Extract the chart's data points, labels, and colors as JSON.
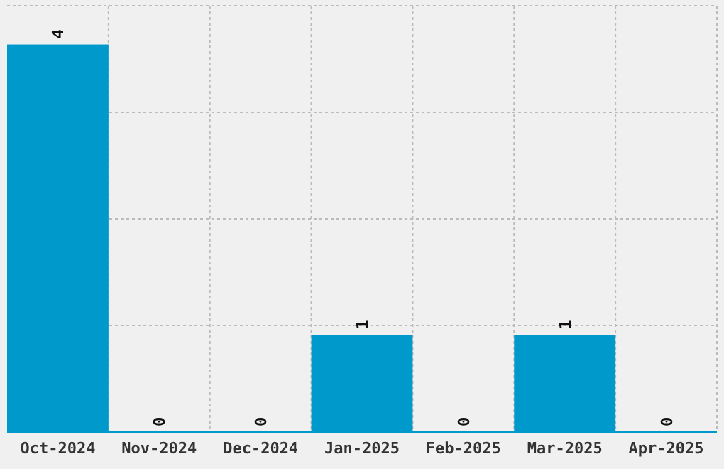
{
  "chart_data": {
    "type": "bar",
    "categories": [
      "Oct-2024",
      "Nov-2024",
      "Dec-2024",
      "Jan-2025",
      "Feb-2025",
      "Mar-2025",
      "Apr-2025"
    ],
    "values": [
      4,
      0,
      0,
      1,
      0,
      1,
      0
    ],
    "color": "#0099cc",
    "data_labels": true,
    "ylim": [
      0,
      4.4
    ],
    "yticks": [
      {
        "value": 1.1,
        "label": null
      },
      {
        "value": 2.2,
        "label": null
      },
      {
        "value": 3.3,
        "label": null
      },
      {
        "value": 4.4,
        "label": null
      }
    ],
    "tick_labels": "x",
    "grid": true
  }
}
